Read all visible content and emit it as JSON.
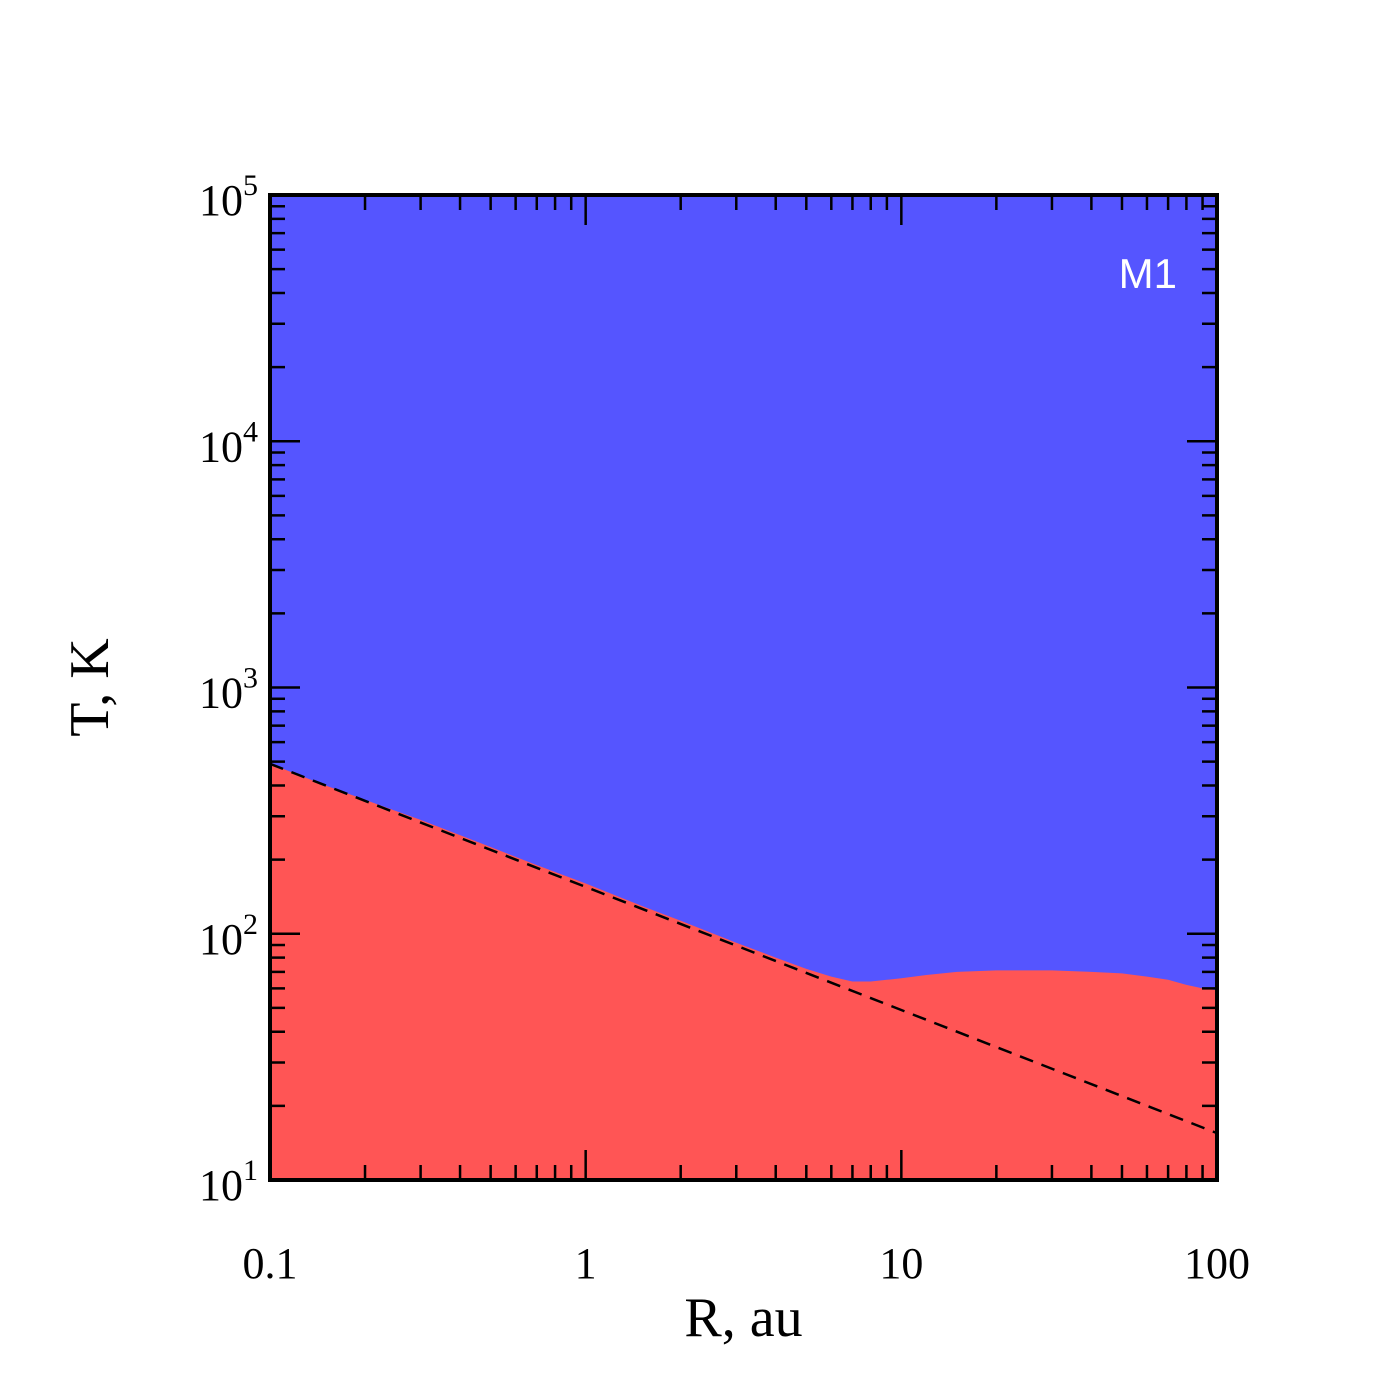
{
  "chart_data": {
    "type": "area",
    "xlabel": "R, au",
    "ylabel": "T, K",
    "xscale": "log",
    "yscale": "log",
    "xlim": [
      0.1,
      100
    ],
    "ylim": [
      10,
      100000
    ],
    "x_ticks": [
      {
        "value": 0.1,
        "label": "0.1"
      },
      {
        "value": 1,
        "label": "1"
      },
      {
        "value": 10,
        "label": "10"
      },
      {
        "value": 100,
        "label": "100"
      }
    ],
    "y_ticks": [
      {
        "value": 10,
        "base": "10",
        "exp": "1"
      },
      {
        "value": 100,
        "base": "10",
        "exp": "2"
      },
      {
        "value": 1000,
        "base": "10",
        "exp": "3"
      },
      {
        "value": 10000,
        "base": "10",
        "exp": "4"
      },
      {
        "value": 100000,
        "base": "10",
        "exp": "5"
      }
    ],
    "annotation": "M1",
    "colors": {
      "upper_region": "#5555ff",
      "lower_region": "#ff5555",
      "annotation": "#ffffff",
      "reference_line": "#000000"
    },
    "boundary": {
      "x": [
        0.1,
        0.15,
        0.2,
        0.3,
        0.5,
        0.7,
        1,
        1.5,
        2,
        3,
        4,
        5,
        6,
        7,
        8,
        9,
        10,
        12,
        15,
        20,
        25,
        30,
        40,
        50,
        60,
        70,
        80,
        90,
        100
      ],
      "y": [
        490,
        400,
        350,
        290,
        225,
        190,
        160,
        130,
        113,
        92,
        80,
        72,
        67,
        64,
        64,
        65,
        66,
        68,
        70,
        71,
        71,
        71,
        70,
        69,
        67,
        65,
        62,
        60,
        59
      ]
    },
    "reference_line": {
      "style": "dashed",
      "x": [
        0.1,
        100
      ],
      "y": [
        490,
        15.5
      ]
    }
  }
}
